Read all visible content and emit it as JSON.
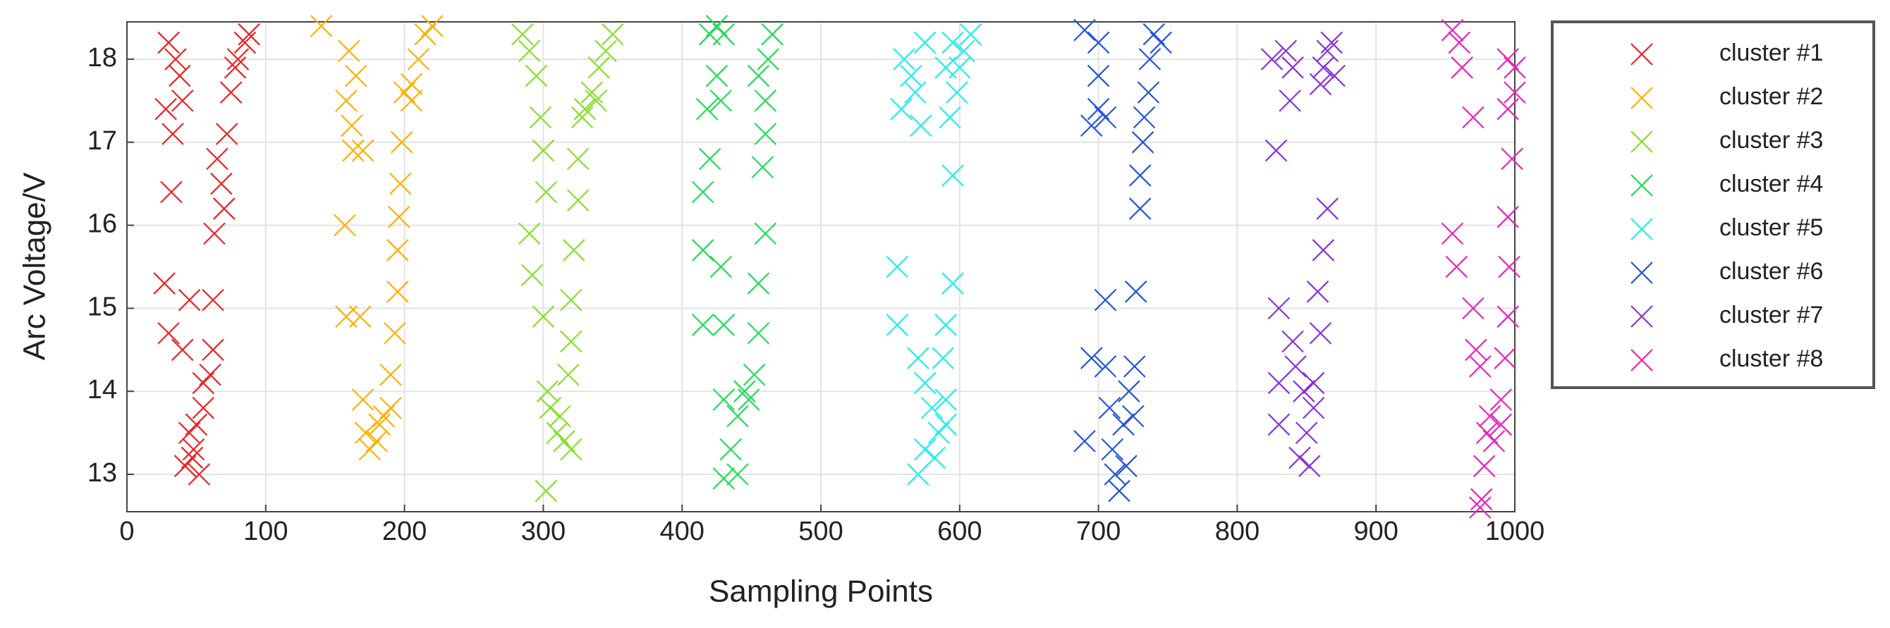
{
  "chart_data": {
    "type": "scatter",
    "xlabel": "Sampling Points",
    "ylabel": "Arc Voltage/V",
    "xlim": [
      0,
      1000
    ],
    "ylim": [
      12.55,
      18.45
    ],
    "xticks": [
      0,
      100,
      200,
      300,
      400,
      500,
      600,
      700,
      800,
      900,
      1000
    ],
    "yticks": [
      13,
      14,
      15,
      16,
      17,
      18
    ],
    "grid": true,
    "series": [
      {
        "name": "cluster #1",
        "color": "#ee2222",
        "x": [
          30,
          35,
          38,
          40,
          28,
          33,
          32,
          27,
          45,
          62,
          30,
          40,
          55,
          60,
          62,
          45,
          48,
          42,
          52,
          50,
          55,
          65,
          68,
          70,
          63,
          72,
          75,
          80,
          85,
          88,
          78,
          47
        ],
        "y": [
          18.2,
          18.0,
          17.8,
          17.5,
          17.4,
          17.1,
          16.4,
          15.3,
          15.1,
          15.1,
          14.7,
          14.5,
          14.1,
          14.2,
          14.5,
          13.5,
          13.3,
          13.1,
          13.0,
          13.6,
          13.8,
          16.8,
          16.5,
          16.2,
          15.9,
          17.1,
          17.6,
          18.0,
          18.2,
          18.3,
          17.9,
          13.2
        ]
      },
      {
        "name": "cluster #2",
        "color": "#ffb000",
        "x": [
          140,
          160,
          165,
          158,
          162,
          163,
          170,
          157,
          158,
          168,
          170,
          172,
          175,
          180,
          185,
          190,
          182,
          190,
          193,
          195,
          195,
          196,
          197,
          198,
          200,
          205,
          210,
          215,
          220,
          205
        ],
        "y": [
          18.4,
          18.1,
          17.8,
          17.5,
          17.2,
          16.9,
          16.9,
          16.0,
          14.9,
          14.9,
          13.9,
          13.5,
          13.3,
          13.4,
          13.7,
          13.8,
          13.6,
          14.2,
          14.7,
          15.2,
          15.7,
          16.1,
          16.5,
          17.0,
          17.6,
          17.7,
          18.0,
          18.3,
          18.4,
          17.5
        ]
      },
      {
        "name": "cluster #3",
        "color": "#88e02a",
        "x": [
          285,
          290,
          295,
          298,
          300,
          302,
          290,
          292,
          300,
          303,
          302,
          310,
          315,
          320,
          312,
          318,
          320,
          320,
          322,
          325,
          325,
          330,
          335,
          340,
          345,
          350,
          338,
          305,
          328
        ],
        "y": [
          18.3,
          18.1,
          17.8,
          17.3,
          16.9,
          16.4,
          15.9,
          15.4,
          14.9,
          14.0,
          12.8,
          13.5,
          13.4,
          13.3,
          13.7,
          14.2,
          14.6,
          15.1,
          15.7,
          16.3,
          16.8,
          17.4,
          17.6,
          17.9,
          18.1,
          18.3,
          17.5,
          13.8,
          17.3
        ]
      },
      {
        "name": "cluster #4",
        "color": "#22dd55",
        "x": [
          420,
          425,
          430,
          425,
          428,
          418,
          420,
          415,
          415,
          428,
          460,
          455,
          415,
          430,
          455,
          430,
          440,
          445,
          448,
          435,
          440,
          430,
          452,
          458,
          460,
          460,
          462,
          465,
          455
        ],
        "y": [
          18.3,
          18.4,
          18.3,
          17.8,
          17.5,
          17.4,
          16.8,
          16.4,
          15.7,
          15.5,
          15.9,
          15.3,
          14.8,
          14.8,
          14.7,
          13.9,
          13.7,
          14.0,
          13.9,
          13.3,
          13.0,
          12.95,
          14.2,
          16.7,
          17.1,
          17.5,
          18.0,
          18.3,
          17.8
        ]
      },
      {
        "name": "cluster #5",
        "color": "#22eeee",
        "x": [
          560,
          568,
          572,
          558,
          565,
          575,
          595,
          555,
          595,
          555,
          590,
          570,
          575,
          588,
          580,
          585,
          575,
          570,
          590,
          582,
          593,
          598,
          600,
          603,
          608,
          595,
          590,
          590
        ],
        "y": [
          18.0,
          17.6,
          17.2,
          17.4,
          17.8,
          18.2,
          16.6,
          15.5,
          15.3,
          14.8,
          14.8,
          14.4,
          14.1,
          14.4,
          13.8,
          13.5,
          13.3,
          13.0,
          13.6,
          13.2,
          17.3,
          17.6,
          17.9,
          18.1,
          18.3,
          18.2,
          17.9,
          13.9
        ]
      },
      {
        "name": "cluster #6",
        "color": "#2255dd",
        "x": [
          690,
          700,
          700,
          705,
          695,
          700,
          705,
          695,
          705,
          690,
          710,
          712,
          715,
          720,
          718,
          722,
          726,
          727,
          730,
          730,
          732,
          733,
          736,
          737,
          740,
          745,
          708,
          725
        ],
        "y": [
          18.35,
          18.2,
          17.8,
          17.3,
          17.2,
          17.4,
          15.1,
          14.4,
          14.3,
          13.4,
          13.3,
          13.0,
          12.8,
          13.1,
          13.6,
          14.0,
          14.3,
          15.2,
          16.2,
          16.6,
          17.0,
          17.3,
          17.6,
          18.0,
          18.3,
          18.2,
          13.8,
          13.7
        ]
      },
      {
        "name": "cluster #7",
        "color": "#8833dd",
        "x": [
          825,
          835,
          840,
          838,
          828,
          830,
          840,
          830,
          842,
          848,
          855,
          850,
          845,
          852,
          830,
          855,
          860,
          858,
          862,
          865,
          860,
          862,
          865,
          868,
          870
        ],
        "y": [
          18.0,
          18.1,
          17.9,
          17.5,
          16.9,
          15.0,
          14.6,
          14.1,
          14.3,
          14.0,
          13.8,
          13.5,
          13.2,
          13.1,
          13.6,
          14.1,
          14.7,
          15.2,
          15.7,
          16.2,
          17.7,
          17.9,
          18.1,
          18.2,
          17.8
        ]
      },
      {
        "name": "cluster #8",
        "color": "#ee22bb",
        "x": [
          955,
          960,
          962,
          970,
          955,
          958,
          970,
          972,
          975,
          978,
          976,
          975,
          980,
          985,
          990,
          990,
          993,
          995,
          996,
          995,
          998,
          995,
          1000,
          1000,
          995,
          982
        ],
        "y": [
          18.35,
          18.2,
          17.9,
          17.3,
          15.9,
          15.5,
          15.0,
          14.5,
          14.3,
          13.1,
          12.7,
          12.6,
          13.5,
          13.4,
          13.6,
          13.9,
          14.4,
          14.9,
          15.5,
          16.1,
          16.8,
          17.4,
          17.6,
          17.9,
          18.0,
          13.7
        ]
      }
    ]
  }
}
